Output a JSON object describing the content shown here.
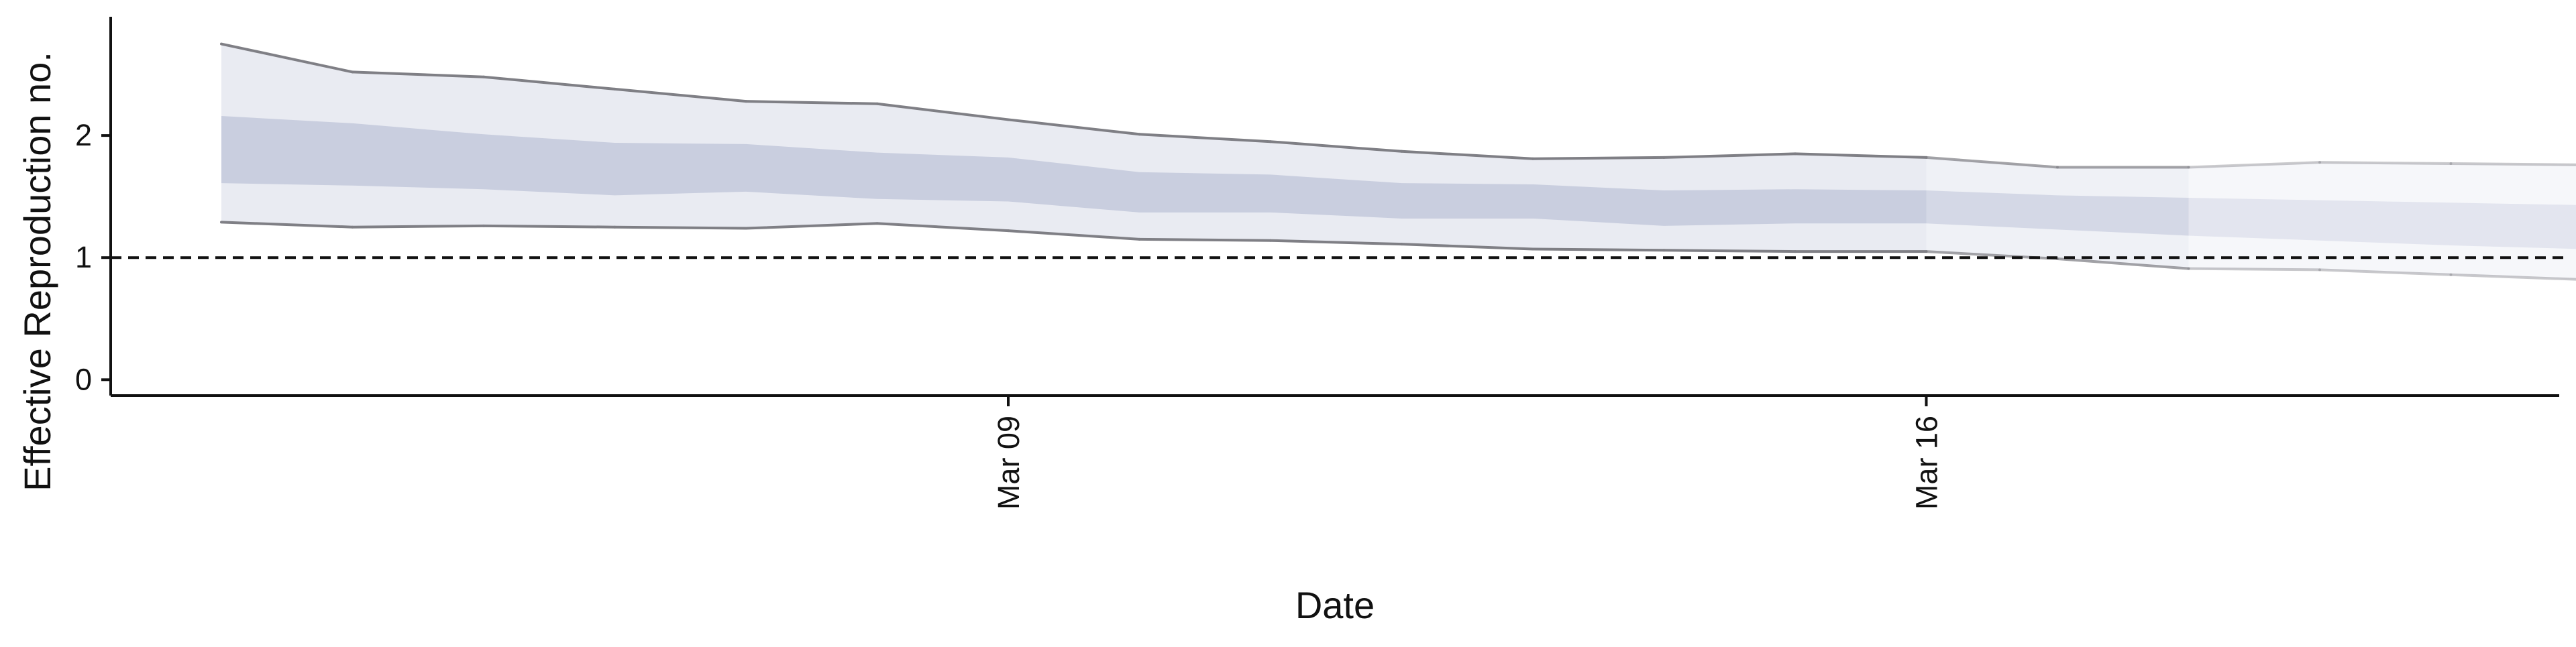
{
  "chart_data": {
    "type": "area",
    "title": "",
    "xlabel": "Date",
    "ylabel": "Effective Reproduction no.",
    "x": [
      "Mar 03",
      "Mar 04",
      "Mar 05",
      "Mar 06",
      "Mar 07",
      "Mar 08",
      "Mar 09",
      "Mar 10",
      "Mar 11",
      "Mar 12",
      "Mar 13",
      "Mar 14",
      "Mar 15",
      "Mar 16",
      "Mar 17",
      "Mar 18",
      "Mar 19",
      "Mar 20",
      "Mar 21"
    ],
    "xticks": [
      "Mar 09",
      "Mar 16"
    ],
    "yticks": [
      0,
      1,
      2
    ],
    "ylim": [
      -0.13,
      3.0
    ],
    "reference_line": 1,
    "grid": false,
    "series": [
      {
        "upper_90": [
          2.75,
          2.52,
          2.48,
          2.38,
          2.28,
          2.26,
          2.13,
          2.01,
          1.95,
          1.87,
          1.81,
          1.82,
          1.85,
          1.82,
          1.74,
          1.74,
          1.78,
          1.77,
          1.76
        ],
        "upper_50": [
          2.16,
          2.1,
          2.01,
          1.94,
          1.93,
          1.86,
          1.82,
          1.7,
          1.68,
          1.61,
          1.6,
          1.55,
          1.56,
          1.55,
          1.51,
          1.49,
          1.47,
          1.45,
          1.43
        ],
        "lower_50": [
          1.61,
          1.59,
          1.56,
          1.51,
          1.54,
          1.48,
          1.46,
          1.37,
          1.37,
          1.32,
          1.32,
          1.26,
          1.28,
          1.28,
          1.23,
          1.18,
          1.14,
          1.1,
          1.07
        ],
        "lower_90": [
          1.29,
          1.25,
          1.26,
          1.25,
          1.24,
          1.28,
          1.22,
          1.15,
          1.14,
          1.11,
          1.07,
          1.06,
          1.05,
          1.05,
          0.99,
          0.91,
          0.9,
          0.86,
          0.82
        ],
        "estimate_type": [
          "estimate",
          "estimate",
          "estimate",
          "estimate",
          "estimate",
          "estimate",
          "estimate",
          "estimate",
          "estimate",
          "estimate",
          "estimate",
          "estimate",
          "estimate",
          "estimate",
          "estimate based on partial data",
          "estimate based on partial data",
          "forecast",
          "forecast",
          "forecast"
        ]
      }
    ],
    "colors": {
      "band_outer": "#e9ebf2",
      "band_inner": "#c9cedf",
      "bound_line": "#7f7f85",
      "reference_line": "#111111",
      "axis": "#111111"
    }
  }
}
